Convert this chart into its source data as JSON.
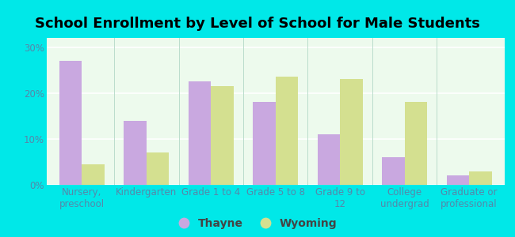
{
  "title": "School Enrollment by Level of School for Male Students",
  "categories": [
    "Nursery,\npreschool",
    "Kindergarten",
    "Grade 1 to 4",
    "Grade 5 to 8",
    "Grade 9 to\n12",
    "College\nundergrad",
    "Graduate or\nprofessional"
  ],
  "thayne": [
    27,
    14,
    22.5,
    18,
    11,
    6,
    2
  ],
  "wyoming": [
    4.5,
    7,
    21.5,
    23.5,
    23,
    18,
    3
  ],
  "thayne_color": "#c9a8e0",
  "wyoming_color": "#d4e090",
  "plot_bg_color": "#edfaed",
  "ylabel_ticks": [
    "0%",
    "10%",
    "20%",
    "30%"
  ],
  "ytick_vals": [
    0,
    10,
    20,
    30
  ],
  "ylim": [
    0,
    32
  ],
  "legend_labels": [
    "Thayne",
    "Wyoming"
  ],
  "title_fontsize": 13,
  "tick_fontsize": 8.5,
  "legend_fontsize": 10,
  "bar_width": 0.35,
  "outer_bg": "#00e8e8",
  "tick_color": "#5588aa",
  "grid_color": "#ffffff",
  "separator_color": "#bbddcc"
}
